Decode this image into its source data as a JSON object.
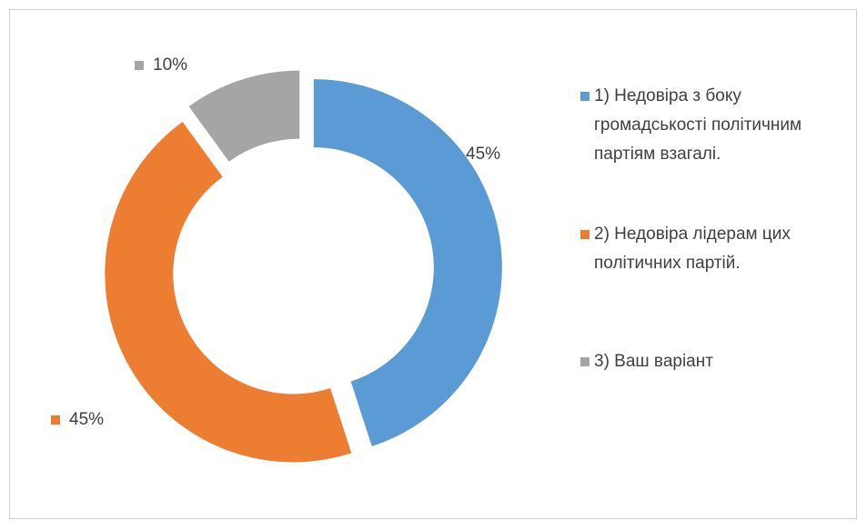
{
  "chart_data": {
    "type": "donut",
    "categories": [
      "1) Недовіра з боку громадськості політичним партіям взагалі.",
      "2) Недовіра лідерам цих політичних партій.",
      "3) Ваш варіант"
    ],
    "values": [
      45,
      45,
      10
    ],
    "value_labels": [
      "45%",
      "45%",
      "10%"
    ],
    "colors": [
      "#5b9bd5",
      "#ed7d31",
      "#a5a5a5"
    ],
    "legend": "right"
  }
}
